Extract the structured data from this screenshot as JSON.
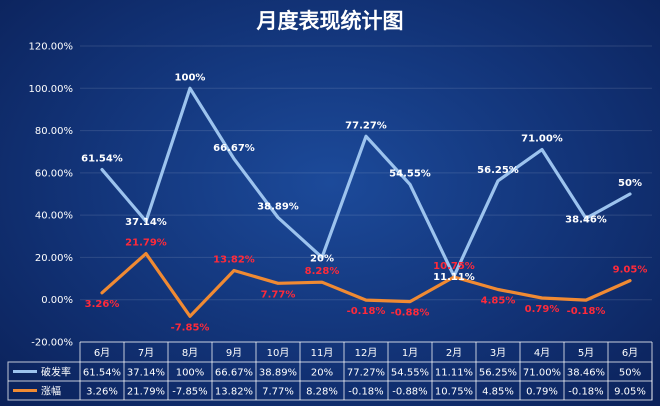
{
  "chart_data": {
    "type": "line",
    "title": "月度表现统计图",
    "categories": [
      "6月",
      "7月",
      "8月",
      "9月",
      "10月",
      "11月",
      "12月",
      "1月",
      "2月",
      "3月",
      "4月",
      "5月",
      "6月"
    ],
    "ylim": [
      -20,
      120
    ],
    "yticks": [
      "120.00%",
      "100.00%",
      "80.00%",
      "60.00%",
      "40.00%",
      "20.00%",
      "0.00%",
      "-20.00%"
    ],
    "grid": true,
    "legend": "table-bottom",
    "series": [
      {
        "name": "破发率",
        "color": "#9cc3ee",
        "values": [
          61.54,
          37.14,
          100,
          66.67,
          38.89,
          20,
          77.27,
          54.55,
          11.11,
          56.25,
          71.0,
          38.46,
          50
        ],
        "labels": [
          "61.54%",
          "37.14%",
          "100%",
          "66.67%",
          "38.89%",
          "20%",
          "77.27%",
          "54.55%",
          "11.11%",
          "56.25%",
          "71.00%",
          "38.46%",
          "50%"
        ]
      },
      {
        "name": "涨幅",
        "color": "#f08a33",
        "values": [
          3.26,
          21.79,
          -7.85,
          13.82,
          7.77,
          8.28,
          -0.18,
          -0.88,
          10.75,
          4.85,
          0.79,
          -0.18,
          9.05
        ],
        "labels": [
          "3.26%",
          "21.79%",
          "-7.85%",
          "13.82%",
          "7.77%",
          "8.28%",
          "-0.18%",
          "-0.88%",
          "10.75%",
          "4.85%",
          "0.79%",
          "-0.18%",
          "9.05%"
        ]
      }
    ]
  }
}
